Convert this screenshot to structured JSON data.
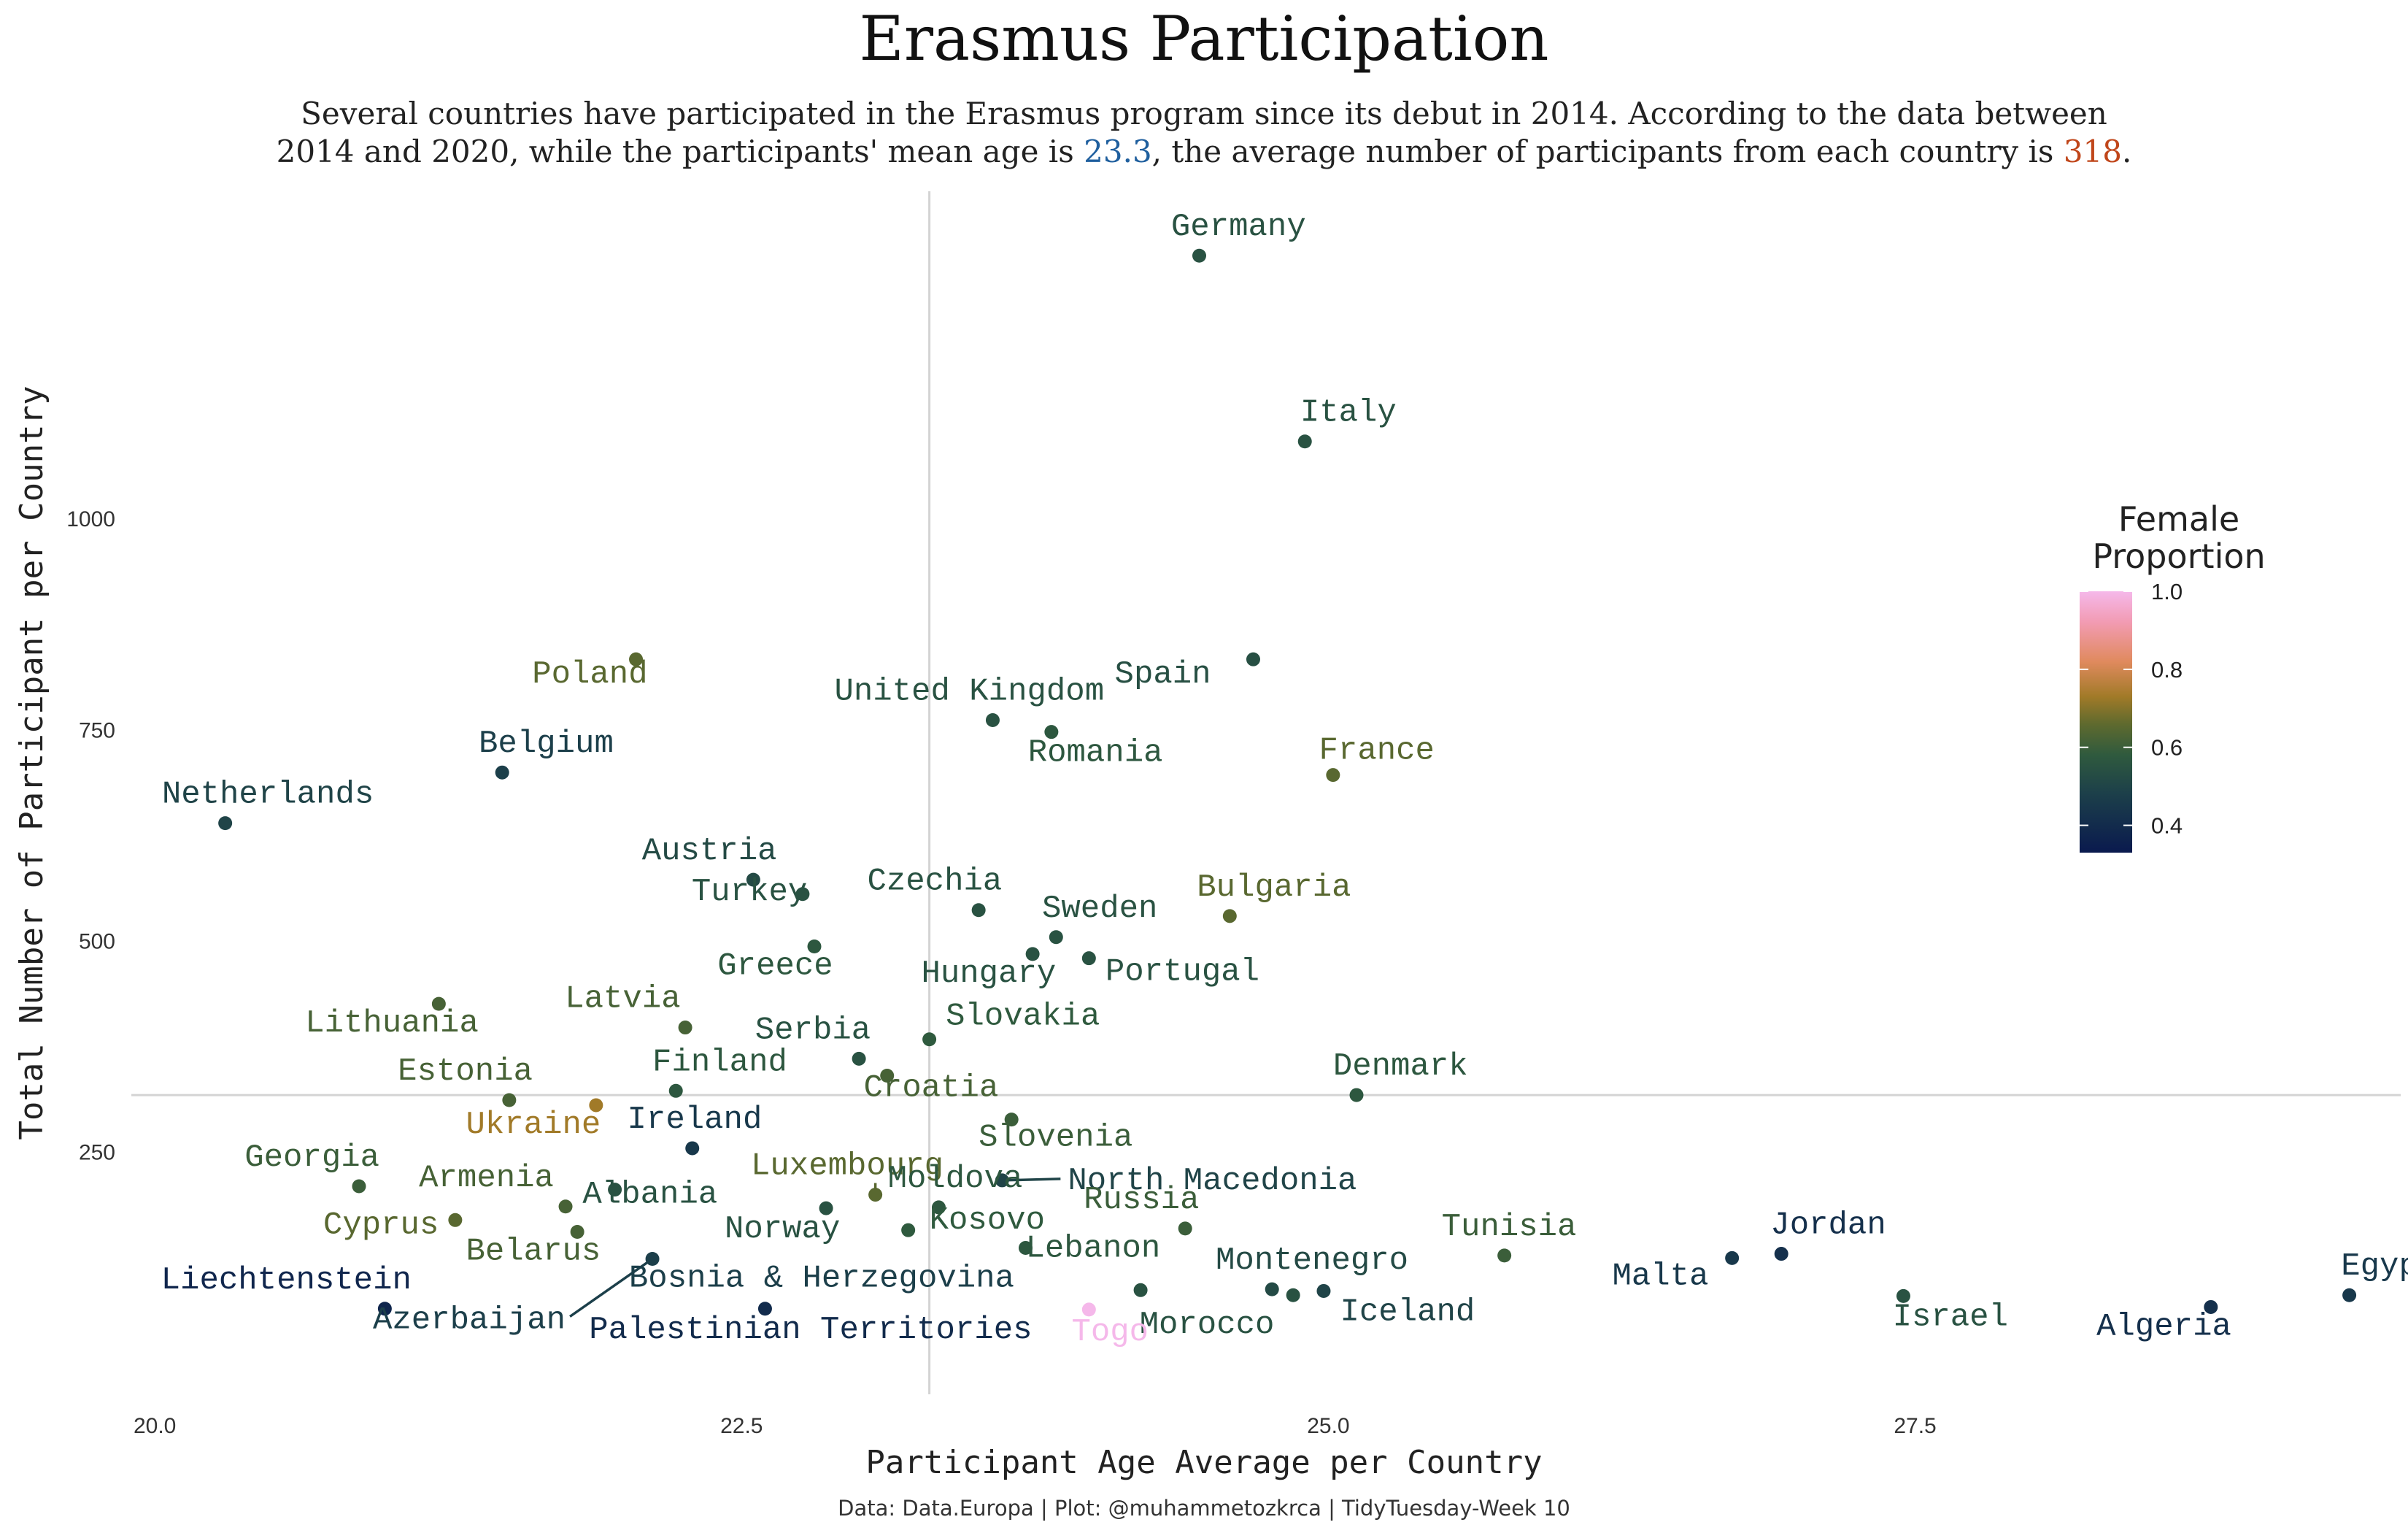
{
  "chart_data": {
    "type": "scatter",
    "title": "Erasmus Participation",
    "subtitle": {
      "line1": "Several countries have participated in the Erasmus program since its debut in 2014. According to the data between",
      "line2_part1": "2014 and 2020, while the participants' mean age is ",
      "mean_age": "23.3",
      "line2_part2": ", the average number of participants from each country is ",
      "mean_count": "318",
      "line2_part3": ".",
      "mean_age_color": "#1f5f9e",
      "mean_count_color": "#c0461a"
    },
    "xlabel": "Participant Age Average per Country",
    "ylabel": "Total Number of Participant per Country",
    "caption": "Data: Data.Europa | Plot: @muhammetozkrca | TidyTuesday-Week 10",
    "xlim": [
      19.9,
      29.6
    ],
    "ylim": [
      -45,
      1390
    ],
    "x_ticks": [
      20.0,
      22.5,
      25.0,
      27.5
    ],
    "x_tick_labels": [
      "20.0",
      "22.5",
      "25.0",
      "27.5"
    ],
    "y_ticks": [
      250,
      500,
      750,
      1000
    ],
    "y_tick_labels": [
      "250",
      "500",
      "750",
      "1000"
    ],
    "reference_lines": {
      "mean_age": 23.3,
      "mean_count": 318
    },
    "grid": false,
    "legend": {
      "title": [
        "Female",
        "Proportion"
      ],
      "position": "right",
      "ticks": [
        0.4,
        0.6,
        0.8,
        1.0
      ],
      "tick_labels": [
        "0.4",
        "0.6",
        "0.8",
        "1.0"
      ],
      "range": [
        0.33,
        1.0
      ],
      "colors": [
        {
          "v": 0.33,
          "c": "#0a1a4e"
        },
        {
          "v": 0.48,
          "c": "#1c3f4a"
        },
        {
          "v": 0.58,
          "c": "#2f5a3e"
        },
        {
          "v": 0.66,
          "c": "#5f6a2e"
        },
        {
          "v": 0.73,
          "c": "#a17a28"
        },
        {
          "v": 0.82,
          "c": "#e08a5e"
        },
        {
          "v": 0.92,
          "c": "#f29bb2"
        },
        {
          "v": 1.0,
          "c": "#f5b8ea"
        }
      ]
    },
    "points": [
      {
        "name": "Germany",
        "x": 24.45,
        "y": 1312,
        "female": 0.55
      },
      {
        "name": "Italy",
        "x": 24.9,
        "y": 1092,
        "female": 0.55
      },
      {
        "name": "Spain",
        "x": 24.68,
        "y": 834,
        "female": 0.54
      },
      {
        "name": "Poland",
        "x": 22.05,
        "y": 834,
        "female": 0.65
      },
      {
        "name": "United Kingdom",
        "x": 23.57,
        "y": 762,
        "female": 0.55
      },
      {
        "name": "Romania",
        "x": 23.82,
        "y": 748,
        "female": 0.57
      },
      {
        "name": "Belgium",
        "x": 21.48,
        "y": 700,
        "female": 0.48
      },
      {
        "name": "France",
        "x": 25.02,
        "y": 697,
        "female": 0.65
      },
      {
        "name": "Netherlands",
        "x": 20.3,
        "y": 640,
        "female": 0.5
      },
      {
        "name": "Austria",
        "x": 22.55,
        "y": 573,
        "female": 0.52
      },
      {
        "name": "Turkey",
        "x": 22.76,
        "y": 556,
        "female": 0.55
      },
      {
        "name": "Czechia",
        "x": 23.51,
        "y": 537,
        "female": 0.55
      },
      {
        "name": "Bulgaria",
        "x": 24.58,
        "y": 530,
        "female": 0.65
      },
      {
        "name": "Sweden",
        "x": 23.84,
        "y": 505,
        "female": 0.55
      },
      {
        "name": "Greece",
        "x": 22.81,
        "y": 494,
        "female": 0.57
      },
      {
        "name": "Hungary",
        "x": 23.74,
        "y": 485,
        "female": 0.55
      },
      {
        "name": "Portugal",
        "x": 23.98,
        "y": 480,
        "female": 0.55
      },
      {
        "name": "Lithuania",
        "x": 21.21,
        "y": 426,
        "female": 0.62
      },
      {
        "name": "Latvia",
        "x": 22.26,
        "y": 398,
        "female": 0.62
      },
      {
        "name": "Slovakia",
        "x": 23.3,
        "y": 384,
        "female": 0.58
      },
      {
        "name": "Serbia",
        "x": 23.0,
        "y": 361,
        "female": 0.55
      },
      {
        "name": "Croatia",
        "x": 23.12,
        "y": 341,
        "female": 0.62
      },
      {
        "name": "Finland",
        "x": 22.22,
        "y": 323,
        "female": 0.57
      },
      {
        "name": "Denmark",
        "x": 25.12,
        "y": 318,
        "female": 0.57
      },
      {
        "name": "Estonia",
        "x": 21.51,
        "y": 312,
        "female": 0.62
      },
      {
        "name": "Ukraine",
        "x": 21.88,
        "y": 306,
        "female": 0.73
      },
      {
        "name": "Slovenia",
        "x": 23.65,
        "y": 289,
        "female": 0.6
      },
      {
        "name": "Ireland",
        "x": 22.29,
        "y": 255,
        "female": 0.45
      },
      {
        "name": "North Macedonia",
        "x": 23.61,
        "y": 217,
        "female": 0.5
      },
      {
        "name": "Georgia",
        "x": 20.87,
        "y": 210,
        "female": 0.6
      },
      {
        "name": "Albania",
        "x": 21.96,
        "y": 206,
        "female": 0.55
      },
      {
        "name": "Luxembourg",
        "x": 23.07,
        "y": 200,
        "female": 0.65
      },
      {
        "name": "Armenia",
        "x": 21.75,
        "y": 186,
        "female": 0.62
      },
      {
        "name": "Norway",
        "x": 22.86,
        "y": 184,
        "female": 0.55
      },
      {
        "name": "Moldova",
        "x": 23.34,
        "y": 185,
        "female": 0.57
      },
      {
        "name": "Cyprus",
        "x": 21.28,
        "y": 170,
        "female": 0.65
      },
      {
        "name": "Russia",
        "x": 24.39,
        "y": 160,
        "female": 0.6
      },
      {
        "name": "Kosovo",
        "x": 23.21,
        "y": 158,
        "female": 0.58
      },
      {
        "name": "Belarus",
        "x": 21.8,
        "y": 156,
        "female": 0.62
      },
      {
        "name": "Lebanon",
        "x": 23.71,
        "y": 137,
        "female": 0.57
      },
      {
        "name": "Tunisia",
        "x": 25.75,
        "y": 128,
        "female": 0.6
      },
      {
        "name": "Bosnia & Herzegovina",
        "x": 22.12,
        "y": 124,
        "female": 0.48
      },
      {
        "name": "Malta",
        "x": 26.72,
        "y": 125,
        "female": 0.45
      },
      {
        "name": "Jordan",
        "x": 26.93,
        "y": 130,
        "female": 0.42
      },
      {
        "name": "Montenegro",
        "x": 24.76,
        "y": 88,
        "female": 0.52
      },
      {
        "name": "Iceland",
        "x": 24.98,
        "y": 86,
        "female": 0.5
      },
      {
        "name": "Morocco",
        "x": 24.85,
        "y": 81,
        "female": 0.55
      },
      {
        "name": "Israel",
        "x": 27.45,
        "y": 80,
        "female": 0.55
      },
      {
        "name": "Egypt",
        "x": 29.35,
        "y": 81,
        "female": 0.45
      },
      {
        "name": "Lebanon2",
        "x": 24.2,
        "y": 87,
        "female": 0.55
      },
      {
        "name": "Liechtenstein",
        "x": 20.98,
        "y": 65,
        "female": 0.38
      },
      {
        "name": "Palestinian Territories",
        "x": 22.6,
        "y": 65,
        "female": 0.4
      },
      {
        "name": "Togo",
        "x": 23.98,
        "y": 64,
        "female": 1.0
      },
      {
        "name": "Algeria",
        "x": 28.76,
        "y": 67,
        "female": 0.42
      }
    ],
    "labels": [
      {
        "text": "Germany",
        "point": "Germany",
        "dx": 0,
        "dy": -12,
        "anchor": "start",
        "ox": -0.12,
        "oy": 28
      },
      {
        "text": "Italy",
        "point": "Italy",
        "anchor": "start",
        "ox": -0.02,
        "oy": 28
      },
      {
        "text": "Spain",
        "point": "Spain",
        "anchor": "end",
        "ox": -0.18,
        "oy": -32
      },
      {
        "text": "Poland",
        "point": "Poland",
        "anchor": "end",
        "ox": 0.05,
        "oy": -32
      },
      {
        "text": "United Kingdom",
        "point": "United Kingdom",
        "anchor": "middle",
        "ox": -0.1,
        "oy": 28
      },
      {
        "text": "Romania",
        "point": "Romania",
        "anchor": "start",
        "ox": -0.1,
        "oy": -40
      },
      {
        "text": "Belgium",
        "point": "Belgium",
        "anchor": "start",
        "ox": -0.1,
        "oy": 28
      },
      {
        "text": "France",
        "point": "France",
        "anchor": "start",
        "ox": -0.06,
        "oy": 22
      },
      {
        "text": "Netherlands",
        "point": "Netherlands",
        "anchor": "start",
        "ox": -0.27,
        "oy": 28
      },
      {
        "text": "Austria",
        "point": "Austria",
        "anchor": "end",
        "ox": 0.1,
        "oy": 28
      },
      {
        "text": "Turkey",
        "point": "Turkey",
        "anchor": "end",
        "ox": 0.02,
        "oy": -8
      },
      {
        "text": "Czechia",
        "point": "Czechia",
        "anchor": "end",
        "ox": 0.1,
        "oy": 28
      },
      {
        "text": "Bulgaria",
        "point": "Bulgaria",
        "anchor": "start",
        "ox": -0.14,
        "oy": 28
      },
      {
        "text": "Sweden",
        "point": "Sweden",
        "anchor": "start",
        "ox": -0.06,
        "oy": 28
      },
      {
        "text": "Greece",
        "point": "Greece",
        "anchor": "end",
        "ox": 0.08,
        "oy": -38
      },
      {
        "text": "Hungary",
        "point": "Hungary",
        "anchor": "end",
        "ox": 0.1,
        "oy": -38
      },
      {
        "text": "Portugal",
        "point": "Portugal",
        "anchor": "start",
        "ox": 0.07,
        "oy": -30
      },
      {
        "text": "Lithuania",
        "point": "Lithuania",
        "anchor": "middle",
        "ox": -0.2,
        "oy": -38
      },
      {
        "text": "Latvia",
        "point": "Latvia",
        "anchor": "end",
        "ox": -0.02,
        "oy": 28
      },
      {
        "text": "Slovakia",
        "point": "Slovakia",
        "anchor": "start",
        "ox": 0.07,
        "oy": 20
      },
      {
        "text": "Serbia",
        "point": "Serbia",
        "anchor": "end",
        "ox": 0.05,
        "oy": 28
      },
      {
        "text": "Croatia",
        "point": "Croatia",
        "anchor": "start",
        "ox": -0.1,
        "oy": -28
      },
      {
        "text": "Finland",
        "point": "Finland",
        "anchor": "start",
        "ox": -0.1,
        "oy": 28
      },
      {
        "text": "Denmark",
        "point": "Denmark",
        "anchor": "start",
        "ox": -0.1,
        "oy": 28
      },
      {
        "text": "Estonia",
        "point": "Estonia",
        "anchor": "end",
        "ox": 0.1,
        "oy": 28
      },
      {
        "text": "Ukraine",
        "point": "Ukraine",
        "anchor": "end",
        "ox": 0.02,
        "oy": -38
      },
      {
        "text": "Slovenia",
        "point": "Slovenia",
        "anchor": "start",
        "ox": -0.14,
        "oy": -36
      },
      {
        "text": "Ireland",
        "point": "Ireland",
        "anchor": "middle",
        "ox": 0.01,
        "oy": 28
      },
      {
        "text": "North Macedonia",
        "point": "North Macedonia",
        "anchor": "start",
        "ox": 0.28,
        "oy": -12,
        "leader": true
      },
      {
        "text": "Georgia",
        "point": "Georgia",
        "anchor": "middle",
        "ox": -0.2,
        "oy": 28
      },
      {
        "text": "Albania",
        "point": "Albania",
        "anchor": "middle",
        "ox": 0.15,
        "oy": -18
      },
      {
        "text": "Luxembourg",
        "point": "Luxembourg",
        "anchor": "middle",
        "ox": -0.12,
        "oy": 28,
        "leader": true
      },
      {
        "text": "Armenia",
        "point": "Armenia",
        "anchor": "end",
        "ox": -0.05,
        "oy": 28
      },
      {
        "text": "Norway",
        "point": "Norway",
        "anchor": "end",
        "ox": 0.06,
        "oy": -40
      },
      {
        "text": "Moldova",
        "point": "Moldova",
        "anchor": "middle",
        "ox": 0.07,
        "oy": 28
      },
      {
        "text": "Cyprus",
        "point": "Cyprus",
        "anchor": "end",
        "ox": -0.07,
        "oy": -18
      },
      {
        "text": "Russia",
        "point": "Russia",
        "anchor": "end",
        "ox": 0.06,
        "oy": 28
      },
      {
        "text": "Kosovo",
        "point": "Kosovo",
        "anchor": "start",
        "ox": 0.09,
        "oy": 2
      },
      {
        "text": "Belarus",
        "point": "Belarus",
        "anchor": "end",
        "ox": 0.1,
        "oy": -38
      },
      {
        "text": "Lebanon",
        "point": "Lebanon",
        "anchor": "start",
        "ox": 0.0,
        "oy": -12
      },
      {
        "text": "Tunisia",
        "point": "Tunisia",
        "anchor": "middle",
        "ox": 0.02,
        "oy": 28
      },
      {
        "text": "Bosnia & Herzegovina",
        "point": "Bosnia & Herzegovina",
        "anchor": "start",
        "ox": -0.1,
        "oy": -38
      },
      {
        "text": "Azerbaijan",
        "point": "Bosnia & Herzegovina",
        "anchor": "end",
        "ox": -0.37,
        "oy": -95,
        "leader": true
      },
      {
        "text": "Malta",
        "point": "Malta",
        "anchor": "end",
        "ox": -0.1,
        "oy": -36
      },
      {
        "text": "Jordan",
        "point": "Jordan",
        "anchor": "middle",
        "ox": 0.2,
        "oy": 28
      },
      {
        "text": "Montenegro",
        "point": "Montenegro",
        "anchor": "start",
        "ox": -0.24,
        "oy": 28
      },
      {
        "text": "Iceland",
        "point": "Iceland",
        "anchor": "start",
        "ox": 0.07,
        "oy": -40
      },
      {
        "text": "Morocco",
        "point": "Morocco",
        "anchor": "end",
        "ox": -0.08,
        "oy": -52
      },
      {
        "text": "Israel",
        "point": "Israel",
        "anchor": "middle",
        "ox": 0.2,
        "oy": -40
      },
      {
        "text": "Egypt",
        "point": "Egypt",
        "anchor": "middle",
        "ox": 0.17,
        "oy": 28
      },
      {
        "text": "Liechtenstein",
        "point": "Liechtenstein",
        "anchor": "middle",
        "ox": -0.42,
        "oy": 28
      },
      {
        "text": "Palestinian Territories",
        "point": "Palestinian Territories",
        "anchor": "start",
        "ox": -0.75,
        "oy": -40
      },
      {
        "text": "Togo",
        "point": "Togo",
        "anchor": "middle",
        "ox": 0.09,
        "oy": -42
      },
      {
        "text": "Algeria",
        "point": "Algeria",
        "anchor": "middle",
        "ox": -0.2,
        "oy": -38
      }
    ]
  }
}
